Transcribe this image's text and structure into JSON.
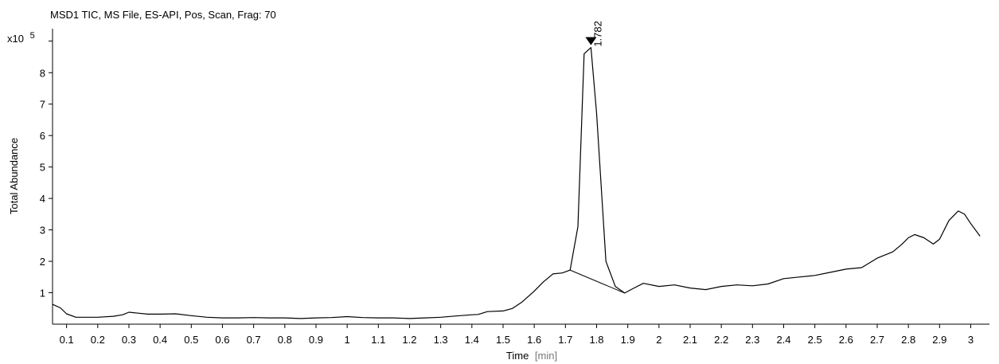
{
  "chart_data": {
    "type": "line",
    "title": "MSD1 TIC, MS File, ES-API, Pos, Scan, Frag: 70",
    "xlabel": "Time",
    "xunit": "[min]",
    "ylabel": "Total Abundance",
    "yscale_label": "x10",
    "yscale_exponent": "5",
    "xlim": [
      0.055,
      3.06
    ],
    "ylim": [
      0,
      9.4
    ],
    "x_ticks": [
      "0.1",
      "0.2",
      "0.3",
      "0.4",
      "0.5",
      "0.6",
      "0.7",
      "0.8",
      "0.9",
      "1",
      "1.1",
      "1.2",
      "1.3",
      "1.4",
      "1.5",
      "1.6",
      "1.7",
      "1.8",
      "1.9",
      "2",
      "2.1",
      "2.2",
      "2.3",
      "2.4",
      "2.5",
      "2.6",
      "2.7",
      "2.8",
      "2.9",
      "3"
    ],
    "y_ticks": [
      "1",
      "2",
      "3",
      "4",
      "5",
      "6",
      "7",
      "8"
    ],
    "grid": false,
    "peak": {
      "x": 1.782,
      "y": 8.8,
      "label": "1.782"
    },
    "baseline": {
      "x": [
        1.715,
        1.89
      ],
      "y": [
        1.72,
        0.99
      ]
    },
    "series": [
      {
        "color": "#000000",
        "x": [
          0.055,
          0.08,
          0.1,
          0.13,
          0.2,
          0.25,
          0.28,
          0.3,
          0.33,
          0.36,
          0.4,
          0.45,
          0.5,
          0.55,
          0.6,
          0.65,
          0.7,
          0.75,
          0.8,
          0.85,
          0.9,
          0.95,
          1.0,
          1.05,
          1.1,
          1.15,
          1.2,
          1.25,
          1.3,
          1.35,
          1.4,
          1.42,
          1.45,
          1.5,
          1.53,
          1.56,
          1.6,
          1.63,
          1.66,
          1.69,
          1.715,
          1.74,
          1.76,
          1.782,
          1.8,
          1.83,
          1.86,
          1.89,
          1.92,
          1.95,
          2.0,
          2.05,
          2.1,
          2.15,
          2.2,
          2.25,
          2.3,
          2.35,
          2.4,
          2.45,
          2.5,
          2.55,
          2.6,
          2.65,
          2.7,
          2.75,
          2.78,
          2.8,
          2.82,
          2.85,
          2.88,
          2.9,
          2.93,
          2.96,
          2.98,
          3.0,
          3.03
        ],
        "y": [
          0.63,
          0.52,
          0.33,
          0.22,
          0.22,
          0.25,
          0.3,
          0.38,
          0.35,
          0.32,
          0.32,
          0.33,
          0.27,
          0.22,
          0.2,
          0.2,
          0.21,
          0.2,
          0.2,
          0.18,
          0.2,
          0.21,
          0.24,
          0.21,
          0.2,
          0.2,
          0.18,
          0.2,
          0.22,
          0.26,
          0.3,
          0.31,
          0.4,
          0.42,
          0.5,
          0.7,
          1.05,
          1.35,
          1.6,
          1.63,
          1.72,
          3.1,
          8.6,
          8.8,
          6.7,
          2.0,
          1.2,
          0.99,
          1.15,
          1.3,
          1.2,
          1.25,
          1.15,
          1.1,
          1.2,
          1.25,
          1.22,
          1.28,
          1.45,
          1.5,
          1.55,
          1.65,
          1.75,
          1.8,
          2.1,
          2.3,
          2.55,
          2.75,
          2.85,
          2.75,
          2.55,
          2.7,
          3.3,
          3.6,
          3.5,
          3.2,
          2.8
        ]
      }
    ]
  }
}
